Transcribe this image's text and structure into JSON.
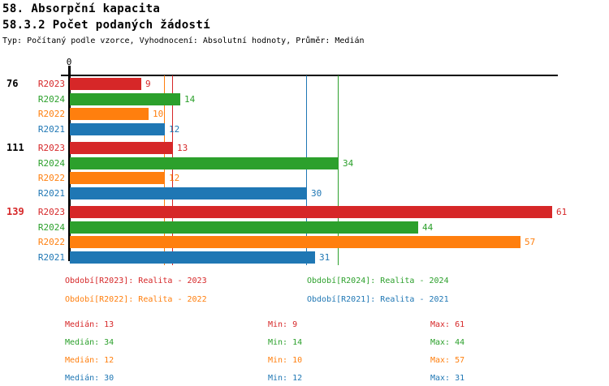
{
  "header": {
    "title1": "58. Absorpční kapacita",
    "title2": "58.3.2 Počet podaných žádostí",
    "subtitle": "Typ: Počítaný podle vzorce, Vyhodnocení: Absolutní hodnoty, Průměr: Medián"
  },
  "colors": {
    "R2023": "#d62728",
    "R2024": "#2ca02c",
    "R2022": "#ff7f0e",
    "R2021": "#1f77b4",
    "axis": "#000000",
    "group_label_default": "#000000",
    "group_label_highlight": "#d62728"
  },
  "chart_data": {
    "type": "bar",
    "orientation": "horizontal",
    "axis_zero_label": "0",
    "xlim": [
      0,
      61.7
    ],
    "grid": false,
    "series_order": [
      "R2023",
      "R2024",
      "R2022",
      "R2021"
    ],
    "groups": [
      {
        "label": "76",
        "highlight": false,
        "bars": [
          {
            "series": "R2023",
            "value": 9
          },
          {
            "series": "R2024",
            "value": 14
          },
          {
            "series": "R2022",
            "value": 10
          },
          {
            "series": "R2021",
            "value": 12
          }
        ]
      },
      {
        "label": "111",
        "highlight": false,
        "bars": [
          {
            "series": "R2023",
            "value": 13
          },
          {
            "series": "R2024",
            "value": 34
          },
          {
            "series": "R2022",
            "value": 12
          },
          {
            "series": "R2021",
            "value": 30
          }
        ]
      },
      {
        "label": "139",
        "highlight": true,
        "bars": [
          {
            "series": "R2023",
            "value": 61
          },
          {
            "series": "R2024",
            "value": 44
          },
          {
            "series": "R2022",
            "value": 57
          },
          {
            "series": "R2021",
            "value": 31
          }
        ]
      }
    ],
    "median_lines": [
      {
        "series": "R2022",
        "value": 12
      },
      {
        "series": "R2023",
        "value": 13
      },
      {
        "series": "R2021",
        "value": 30
      },
      {
        "series": "R2024",
        "value": 34
      }
    ]
  },
  "legend": {
    "items": [
      {
        "series": "R2023",
        "label": "Období[R2023]: Realita - 2023",
        "col": 0,
        "row": 0
      },
      {
        "series": "R2024",
        "label": "Období[R2024]: Realita - 2024",
        "col": 1,
        "row": 0
      },
      {
        "series": "R2022",
        "label": "Období[R2022]: Realita - 2022",
        "col": 0,
        "row": 1
      },
      {
        "series": "R2021",
        "label": "Období[R2021]: Realita - 2021",
        "col": 1,
        "row": 1
      }
    ]
  },
  "stats": {
    "rows": [
      {
        "series": "R2023",
        "median_label": "Medián: 13",
        "min_label": "Min: 9",
        "max_label": "Max: 61"
      },
      {
        "series": "R2024",
        "median_label": "Medián: 34",
        "min_label": "Min: 14",
        "max_label": "Max: 44"
      },
      {
        "series": "R2022",
        "median_label": "Medián: 12",
        "min_label": "Min: 10",
        "max_label": "Max: 57"
      },
      {
        "series": "R2021",
        "median_label": "Medián: 30",
        "min_label": "Min: 12",
        "max_label": "Max: 31"
      }
    ]
  }
}
